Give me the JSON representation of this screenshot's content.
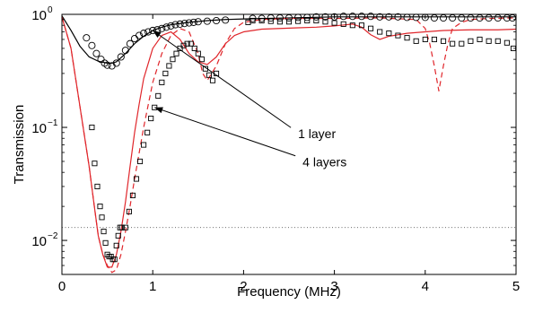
{
  "chart_data": {
    "type": "line",
    "xlabel": "Frequency (MHz)",
    "ylabel": "Transmission",
    "xlim": [
      0,
      5
    ],
    "ylim": [
      0.005,
      1
    ],
    "yscale": "log",
    "grid": false,
    "xticks": [
      0,
      1,
      2,
      3,
      4,
      5
    ],
    "xtick_labels": [
      "0",
      "1",
      "2",
      "3",
      "4",
      "5"
    ],
    "yticks": [
      0.01,
      0.1,
      1
    ],
    "ytick_base": "10",
    "ytick_exponents": [
      "−2",
      "−1",
      "0"
    ],
    "reference_line": {
      "y": 0.013,
      "style": "dotted"
    },
    "series": [
      {
        "style": "black-solid",
        "x": [
          0,
          0.1,
          0.2,
          0.3,
          0.4,
          0.5,
          0.55,
          0.6,
          0.7,
          0.8,
          0.9,
          1.0,
          1.1,
          1.2,
          1.4,
          1.6,
          1.8,
          2.0,
          2.5,
          3.0,
          3.5,
          4.0,
          4.5,
          5.0
        ],
        "y": [
          0.97,
          0.72,
          0.52,
          0.42,
          0.385,
          0.37,
          0.37,
          0.38,
          0.45,
          0.55,
          0.64,
          0.72,
          0.77,
          0.81,
          0.85,
          0.88,
          0.9,
          0.91,
          0.93,
          0.95,
          0.95,
          0.95,
          0.95,
          0.95
        ]
      },
      {
        "style": "black-circles",
        "x": [
          0.27,
          0.33,
          0.38,
          0.43,
          0.47,
          0.5,
          0.55,
          0.6,
          0.65,
          0.7,
          0.75,
          0.8,
          0.85,
          0.9,
          0.95,
          1.0,
          1.05,
          1.1,
          1.15,
          1.2,
          1.25,
          1.3,
          1.35,
          1.4,
          1.45,
          1.5,
          1.6,
          1.7,
          1.8,
          2.1,
          2.2,
          2.3,
          2.4,
          2.5,
          2.6,
          2.7,
          2.8,
          2.9,
          3.0,
          3.1,
          3.2,
          3.3,
          3.4,
          3.5,
          3.6,
          3.7,
          3.8,
          3.9,
          4.0,
          4.1,
          4.2,
          4.3,
          4.4,
          4.5,
          4.6,
          4.7,
          4.8,
          4.9,
          4.96
        ],
        "y": [
          0.62,
          0.53,
          0.45,
          0.4,
          0.37,
          0.355,
          0.35,
          0.37,
          0.42,
          0.48,
          0.55,
          0.61,
          0.65,
          0.68,
          0.7,
          0.72,
          0.73,
          0.75,
          0.77,
          0.79,
          0.81,
          0.82,
          0.83,
          0.84,
          0.85,
          0.86,
          0.87,
          0.88,
          0.89,
          0.92,
          0.92,
          0.93,
          0.93,
          0.93,
          0.94,
          0.94,
          0.95,
          0.95,
          0.95,
          0.96,
          0.96,
          0.96,
          0.96,
          0.95,
          0.95,
          0.95,
          0.94,
          0.94,
          0.94,
          0.93,
          0.93,
          0.93,
          0.93,
          0.93,
          0.93,
          0.93,
          0.93,
          0.93,
          0.93
        ]
      },
      {
        "style": "red-solid",
        "x": [
          0,
          0.1,
          0.2,
          0.3,
          0.35,
          0.4,
          0.45,
          0.5,
          0.55,
          0.6,
          0.65,
          0.7,
          0.75,
          0.8,
          0.85,
          0.9,
          1.0,
          1.1,
          1.2,
          1.3,
          1.4,
          1.5,
          1.6,
          1.7,
          1.8,
          1.9,
          2.0,
          2.2,
          2.4,
          2.6,
          2.8,
          3.0,
          3.2,
          3.3,
          3.4,
          3.5,
          3.6,
          3.8,
          4.0,
          4.2,
          4.5,
          4.8,
          5.0
        ],
        "y": [
          0.95,
          0.5,
          0.15,
          0.045,
          0.022,
          0.011,
          0.0075,
          0.0058,
          0.0058,
          0.0075,
          0.012,
          0.022,
          0.045,
          0.09,
          0.16,
          0.27,
          0.5,
          0.65,
          0.7,
          0.6,
          0.45,
          0.38,
          0.36,
          0.42,
          0.55,
          0.65,
          0.7,
          0.74,
          0.75,
          0.76,
          0.77,
          0.79,
          0.82,
          0.77,
          0.66,
          0.6,
          0.64,
          0.68,
          0.7,
          0.72,
          0.73,
          0.73,
          0.74
        ]
      },
      {
        "style": "red-dashed",
        "x": [
          0,
          0.1,
          0.2,
          0.3,
          0.35,
          0.4,
          0.45,
          0.5,
          0.55,
          0.6,
          0.65,
          0.7,
          0.75,
          0.8,
          0.9,
          1.0,
          1.1,
          1.2,
          1.3,
          1.4,
          1.5,
          1.55,
          1.6,
          1.7,
          1.8,
          1.9,
          2.0,
          2.2,
          2.5,
          3.0,
          3.5,
          3.9,
          4.0,
          4.05,
          4.1,
          4.15,
          4.2,
          4.25,
          4.3,
          4.4,
          4.5,
          4.7,
          5.0
        ],
        "y": [
          0.95,
          0.5,
          0.15,
          0.045,
          0.022,
          0.011,
          0.0075,
          0.006,
          0.0052,
          0.0055,
          0.0075,
          0.012,
          0.02,
          0.035,
          0.1,
          0.25,
          0.45,
          0.65,
          0.75,
          0.7,
          0.45,
          0.3,
          0.26,
          0.35,
          0.55,
          0.75,
          0.85,
          0.9,
          0.92,
          0.92,
          0.93,
          0.9,
          0.75,
          0.55,
          0.35,
          0.21,
          0.35,
          0.55,
          0.75,
          0.85,
          0.9,
          0.92,
          0.93
        ]
      },
      {
        "style": "black-squares",
        "x": [
          0.33,
          0.36,
          0.39,
          0.42,
          0.44,
          0.46,
          0.48,
          0.5,
          0.52,
          0.54,
          0.56,
          0.58,
          0.6,
          0.62,
          0.64,
          0.66,
          0.7,
          0.74,
          0.78,
          0.82,
          0.86,
          0.9,
          0.94,
          0.98,
          1.02,
          1.06,
          1.1,
          1.14,
          1.18,
          1.22,
          1.26,
          1.3,
          1.34,
          1.38,
          1.42,
          1.46,
          1.5,
          1.54,
          1.58,
          1.62,
          1.66,
          1.7,
          2.05,
          2.1,
          2.2,
          2.3,
          2.4,
          2.5,
          2.6,
          2.7,
          2.8,
          2.9,
          3.0,
          3.1,
          3.2,
          3.3,
          3.4,
          3.5,
          3.6,
          3.7,
          3.8,
          3.9,
          4.0,
          4.1,
          4.2,
          4.3,
          4.4,
          4.5,
          4.6,
          4.7,
          4.8,
          4.9,
          4.97
        ],
        "y": [
          0.1,
          0.048,
          0.03,
          0.02,
          0.016,
          0.012,
          0.0095,
          0.0075,
          0.0072,
          0.0072,
          0.0068,
          0.0068,
          0.009,
          0.011,
          0.013,
          0.013,
          0.013,
          0.018,
          0.025,
          0.035,
          0.05,
          0.07,
          0.09,
          0.12,
          0.15,
          0.19,
          0.25,
          0.3,
          0.35,
          0.4,
          0.45,
          0.5,
          0.53,
          0.55,
          0.55,
          0.5,
          0.45,
          0.4,
          0.33,
          0.29,
          0.26,
          0.3,
          0.85,
          0.88,
          0.88,
          0.87,
          0.86,
          0.86,
          0.87,
          0.88,
          0.88,
          0.86,
          0.84,
          0.82,
          0.8,
          0.8,
          0.75,
          0.7,
          0.68,
          0.65,
          0.62,
          0.58,
          0.6,
          0.6,
          0.58,
          0.55,
          0.55,
          0.58,
          0.6,
          0.58,
          0.58,
          0.56,
          0.5
        ]
      }
    ],
    "annotations": [
      {
        "text": "1 layer",
        "x": 2.6,
        "y": 0.08,
        "target_x": 1.0,
        "target_y": 0.72
      },
      {
        "text": "4 layers",
        "x": 2.65,
        "y": 0.045,
        "target_x": 1.02,
        "target_y": 0.15
      }
    ]
  }
}
